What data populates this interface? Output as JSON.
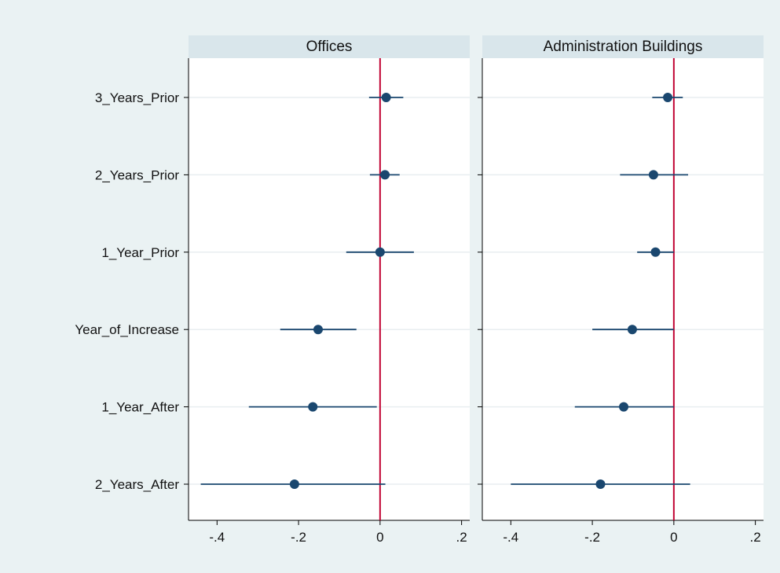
{
  "chart_data": {
    "type": "scatter",
    "subtype": "coefficient-plot",
    "categories": [
      "3_Years_Prior",
      "2_Years_Prior",
      "1_Year_Prior",
      "Year_of_Increase",
      "1_Year_After",
      "2_Years_After"
    ],
    "xlim": [
      -0.47,
      0.22
    ],
    "x_ticks": [
      -0.4,
      -0.2,
      0,
      0.2
    ],
    "x_tick_labels": [
      "-.4",
      "-.2",
      "0",
      ".2"
    ],
    "reference_line_x": 0,
    "grid": true,
    "panels": [
      {
        "title": "Offices",
        "series": [
          {
            "estimates": [
              0.015,
              0.012,
              0.0,
              -0.152,
              -0.165,
              -0.21
            ],
            "ci_low": [
              -0.027,
              -0.025,
              -0.083,
              -0.245,
              -0.322,
              -0.44
            ],
            "ci_high": [
              0.057,
              0.048,
              0.083,
              -0.058,
              -0.008,
              0.013
            ]
          }
        ]
      },
      {
        "title": "Administration Buildings",
        "series": [
          {
            "estimates": [
              -0.015,
              -0.05,
              -0.045,
              -0.102,
              -0.123,
              -0.18
            ],
            "ci_low": [
              -0.053,
              -0.132,
              -0.09,
              -0.2,
              -0.243,
              -0.4
            ],
            "ci_high": [
              0.022,
              0.035,
              0.0,
              0.0,
              0.0,
              0.04
            ]
          }
        ]
      }
    ]
  },
  "colors": {
    "background": "#eaf2f3",
    "plot_region": "#ffffff",
    "title_band": "#d9e6eb",
    "gridline": "#e9eef0",
    "marker": "#1a476f",
    "ci_line": "#1a476f",
    "reference_line": "#c10534"
  }
}
